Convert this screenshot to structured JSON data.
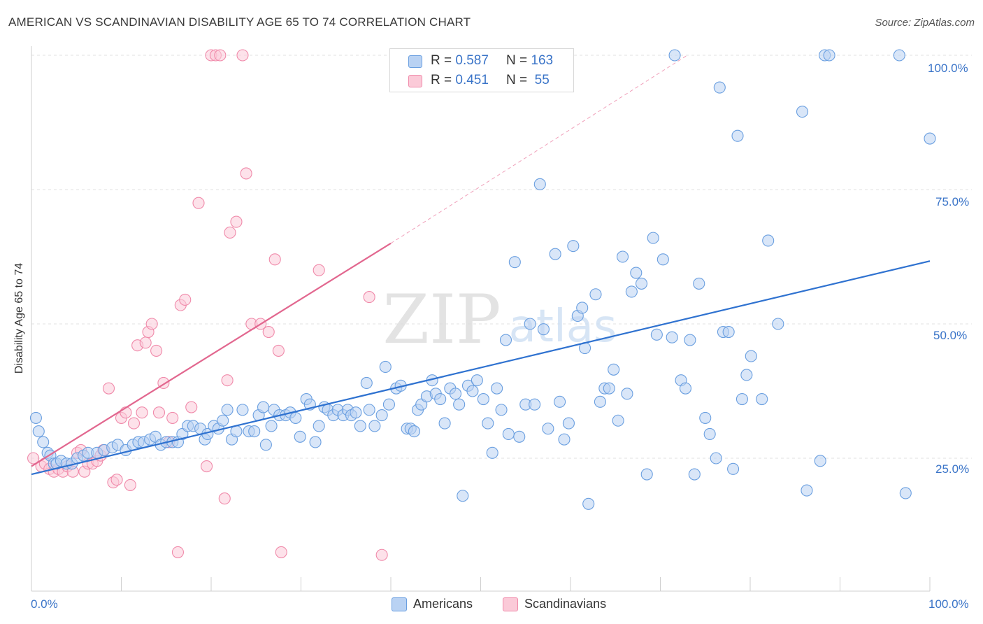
{
  "header": {
    "title": "AMERICAN VS SCANDINAVIAN DISABILITY AGE 65 TO 74 CORRELATION CHART",
    "source": "Source: ZipAtlas.com"
  },
  "watermark": {
    "text_zip": "ZIP",
    "text_atlas": "atlas"
  },
  "legend_top": {
    "rows": [
      {
        "r_label": "R = ",
        "r_value": "0.587",
        "n_label": "N = ",
        "n_value": "163",
        "color": "#6a9fe0"
      },
      {
        "r_label": "R = ",
        "r_value": "0.451",
        "n_label": "N = ",
        "n_value": " 55",
        "color": "#f08aaa"
      }
    ]
  },
  "legend_bottom": {
    "items": [
      "Americans",
      "Scandinavians"
    ]
  },
  "chart_data": {
    "type": "scatter",
    "title": "AMERICAN VS SCANDINAVIAN DISABILITY AGE 65 TO 74 CORRELATION CHART",
    "xlabel": "",
    "ylabel": "Disability Age 65 to 74",
    "x_tick_labels": [
      "0.0%",
      "100.0%"
    ],
    "y_tick_labels": [
      "25.0%",
      "50.0%",
      "75.0%",
      "100.0%"
    ],
    "xlim": [
      0,
      100
    ],
    "ylim": [
      2,
      102
    ],
    "grid": true,
    "legend_position": "top-center",
    "series": [
      {
        "name": "Americans",
        "color": "#6a9fe0",
        "trend": {
          "x": [
            0,
            100
          ],
          "y": [
            22.0,
            61.7
          ]
        },
        "points": [
          [
            0.5,
            32.5
          ],
          [
            0.8,
            30
          ],
          [
            1.3,
            28
          ],
          [
            1.8,
            26
          ],
          [
            2.1,
            25.5
          ],
          [
            2.5,
            24
          ],
          [
            2.8,
            24
          ],
          [
            3.3,
            24.5
          ],
          [
            3.9,
            24
          ],
          [
            4.5,
            24
          ],
          [
            5.1,
            25
          ],
          [
            5.8,
            25.5
          ],
          [
            6.3,
            26
          ],
          [
            7.3,
            26
          ],
          [
            8.1,
            26.5
          ],
          [
            9.0,
            27
          ],
          [
            9.6,
            27.5
          ],
          [
            10.5,
            26.5
          ],
          [
            11.3,
            27.5
          ],
          [
            11.9,
            28
          ],
          [
            12.5,
            28
          ],
          [
            13.2,
            28.5
          ],
          [
            13.8,
            29
          ],
          [
            14.4,
            27.5
          ],
          [
            15.0,
            28
          ],
          [
            15.7,
            28
          ],
          [
            16.3,
            28
          ],
          [
            16.8,
            29.5
          ],
          [
            17.4,
            31
          ],
          [
            18.0,
            31
          ],
          [
            18.8,
            30.5
          ],
          [
            19.3,
            28.5
          ],
          [
            19.6,
            29.5
          ],
          [
            20.3,
            31
          ],
          [
            20.8,
            30.5
          ],
          [
            21.3,
            32
          ],
          [
            21.8,
            34
          ],
          [
            22.3,
            28.5
          ],
          [
            22.8,
            30
          ],
          [
            23.5,
            34
          ],
          [
            24.2,
            30
          ],
          [
            24.8,
            30
          ],
          [
            25.3,
            33
          ],
          [
            25.8,
            34.5
          ],
          [
            26.1,
            27.5
          ],
          [
            26.7,
            31
          ],
          [
            27.0,
            34
          ],
          [
            27.6,
            33
          ],
          [
            28.3,
            33
          ],
          [
            28.8,
            33.5
          ],
          [
            29.4,
            32.5
          ],
          [
            29.9,
            29
          ],
          [
            30.6,
            36
          ],
          [
            31.0,
            35
          ],
          [
            31.6,
            28
          ],
          [
            32.0,
            31
          ],
          [
            32.6,
            34.5
          ],
          [
            33.0,
            34
          ],
          [
            33.6,
            33
          ],
          [
            34.1,
            34
          ],
          [
            34.7,
            33
          ],
          [
            35.2,
            34
          ],
          [
            35.6,
            33
          ],
          [
            36.1,
            33.5
          ],
          [
            36.6,
            31
          ],
          [
            37.3,
            39
          ],
          [
            37.6,
            34
          ],
          [
            38.2,
            31
          ],
          [
            39.0,
            33
          ],
          [
            39.4,
            42
          ],
          [
            39.8,
            35
          ],
          [
            40.6,
            38
          ],
          [
            41.1,
            38.5
          ],
          [
            41.8,
            30.5
          ],
          [
            42.2,
            30.5
          ],
          [
            42.6,
            30
          ],
          [
            43.0,
            34
          ],
          [
            43.4,
            35
          ],
          [
            44.0,
            36.5
          ],
          [
            44.6,
            39.5
          ],
          [
            45.0,
            37
          ],
          [
            45.5,
            36
          ],
          [
            46.0,
            31.5
          ],
          [
            46.6,
            38
          ],
          [
            47.2,
            37
          ],
          [
            47.6,
            35
          ],
          [
            48.0,
            18
          ],
          [
            48.6,
            38.5
          ],
          [
            49.1,
            37.5
          ],
          [
            49.6,
            39.5
          ],
          [
            50.3,
            36
          ],
          [
            50.8,
            31.5
          ],
          [
            51.3,
            26
          ],
          [
            51.8,
            38
          ],
          [
            52.3,
            34
          ],
          [
            52.8,
            47
          ],
          [
            53.1,
            29.5
          ],
          [
            53.8,
            61.5
          ],
          [
            54.3,
            29
          ],
          [
            55.0,
            35
          ],
          [
            55.5,
            50
          ],
          [
            56.0,
            35
          ],
          [
            56.6,
            76
          ],
          [
            57.0,
            49
          ],
          [
            57.5,
            30.5
          ],
          [
            58.3,
            63
          ],
          [
            58.8,
            35.5
          ],
          [
            59.3,
            28.5
          ],
          [
            59.8,
            31.5
          ],
          [
            60.3,
            64.5
          ],
          [
            60.8,
            51.5
          ],
          [
            61.3,
            53
          ],
          [
            61.6,
            45.5
          ],
          [
            62.0,
            16.5
          ],
          [
            62.8,
            55.5
          ],
          [
            63.3,
            35.5
          ],
          [
            63.8,
            38
          ],
          [
            64.3,
            38
          ],
          [
            64.8,
            41.5
          ],
          [
            65.3,
            32
          ],
          [
            65.8,
            62.5
          ],
          [
            66.3,
            37
          ],
          [
            66.8,
            56
          ],
          [
            67.3,
            59.5
          ],
          [
            67.9,
            57.5
          ],
          [
            68.5,
            22
          ],
          [
            69.2,
            66
          ],
          [
            69.6,
            48
          ],
          [
            70.3,
            62
          ],
          [
            71.3,
            47.5
          ],
          [
            71.6,
            100
          ],
          [
            72.3,
            39.5
          ],
          [
            72.8,
            38
          ],
          [
            73.3,
            47
          ],
          [
            73.8,
            22
          ],
          [
            74.3,
            57.5
          ],
          [
            75.0,
            32.5
          ],
          [
            75.5,
            29.5
          ],
          [
            76.2,
            25
          ],
          [
            76.6,
            94
          ],
          [
            77.0,
            48.5
          ],
          [
            77.6,
            48.5
          ],
          [
            78.1,
            23
          ],
          [
            78.6,
            85
          ],
          [
            79.1,
            36
          ],
          [
            79.6,
            40.5
          ],
          [
            80.1,
            44
          ],
          [
            81.3,
            36
          ],
          [
            82.0,
            65.5
          ],
          [
            83.1,
            50
          ],
          [
            85.8,
            89.5
          ],
          [
            86.3,
            19
          ],
          [
            87.8,
            24.5
          ],
          [
            88.3,
            100
          ],
          [
            88.8,
            100
          ],
          [
            96.6,
            100
          ],
          [
            97.3,
            18.5
          ],
          [
            100.0,
            84.5
          ]
        ]
      },
      {
        "name": "Scandinavians",
        "color": "#f08aaa",
        "trend": {
          "x": [
            0,
            40
          ],
          "y": [
            23.5,
            65.0
          ]
        },
        "trend_extension": {
          "x": [
            40,
            73
          ],
          "y": [
            65.0,
            100.0
          ]
        },
        "points": [
          [
            0.2,
            25
          ],
          [
            1.1,
            23.5
          ],
          [
            1.5,
            24
          ],
          [
            2.0,
            23
          ],
          [
            2.5,
            22.5
          ],
          [
            3.0,
            23
          ],
          [
            3.5,
            22.5
          ],
          [
            4.0,
            23.5
          ],
          [
            4.6,
            22.5
          ],
          [
            5.1,
            26
          ],
          [
            5.5,
            26.5
          ],
          [
            5.9,
            22.5
          ],
          [
            6.3,
            24
          ],
          [
            6.8,
            24
          ],
          [
            7.3,
            24.5
          ],
          [
            7.7,
            25.5
          ],
          [
            8.0,
            26.5
          ],
          [
            8.6,
            38
          ],
          [
            9.1,
            20.5
          ],
          [
            9.5,
            21
          ],
          [
            10.0,
            32.5
          ],
          [
            10.5,
            33.5
          ],
          [
            11.0,
            20
          ],
          [
            11.4,
            31.5
          ],
          [
            11.8,
            46
          ],
          [
            12.3,
            33.5
          ],
          [
            12.7,
            46.5
          ],
          [
            13.0,
            48.5
          ],
          [
            13.4,
            50
          ],
          [
            13.9,
            45
          ],
          [
            14.2,
            33.5
          ],
          [
            14.7,
            39
          ],
          [
            15.3,
            28
          ],
          [
            15.7,
            32.5
          ],
          [
            16.3,
            7.5
          ],
          [
            16.6,
            53.5
          ],
          [
            17.1,
            54.5
          ],
          [
            17.8,
            34.5
          ],
          [
            18.6,
            72.5
          ],
          [
            19.5,
            23.5
          ],
          [
            20.0,
            100
          ],
          [
            20.5,
            100
          ],
          [
            21.0,
            100
          ],
          [
            21.5,
            17.5
          ],
          [
            21.8,
            39.5
          ],
          [
            22.1,
            67
          ],
          [
            22.8,
            69
          ],
          [
            23.5,
            100
          ],
          [
            23.9,
            78
          ],
          [
            24.5,
            50
          ],
          [
            25.5,
            50
          ],
          [
            26.4,
            48.5
          ],
          [
            27.1,
            62
          ],
          [
            27.5,
            45
          ],
          [
            27.8,
            7.5
          ],
          [
            32.0,
            60
          ],
          [
            37.6,
            55
          ],
          [
            39.0,
            7
          ]
        ]
      }
    ]
  }
}
